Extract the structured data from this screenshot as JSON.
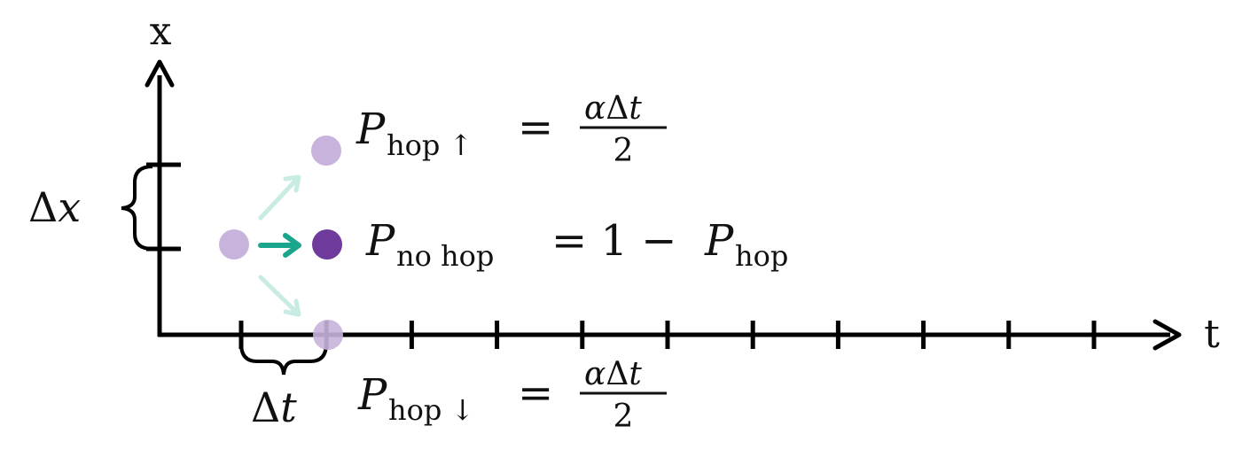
{
  "axes": {
    "x_label": "x",
    "t_label": "t"
  },
  "spacing": {
    "dx_label_delta": "Δ",
    "dx_label_var": "x",
    "dt_label_delta": "Δ",
    "dt_label_var": "t"
  },
  "equations": {
    "hop_up": {
      "symbol": "P",
      "subscript": "hop ↑",
      "equals": "=",
      "numerator_alpha": "α",
      "numerator_delta": "Δ",
      "numerator_var": "t",
      "denominator": "2"
    },
    "no_hop": {
      "symbol": "P",
      "subscript": "no hop",
      "rhs_const": "= 1 −",
      "rhs_symbol": "P",
      "rhs_subscript": "hop"
    },
    "hop_down": {
      "symbol": "P",
      "subscript": "hop ↓",
      "equals": "=",
      "numerator_alpha": "α",
      "numerator_delta": "Δ",
      "numerator_var": "t",
      "denominator": "2"
    }
  },
  "colors": {
    "axis": "#000000",
    "dot_faded": "#c8b3dc",
    "dot_current": "#6e3a9c",
    "arrow_strong": "#1aa68c",
    "arrow_faded": "#c8ebe3"
  },
  "t_tick_count": 11
}
